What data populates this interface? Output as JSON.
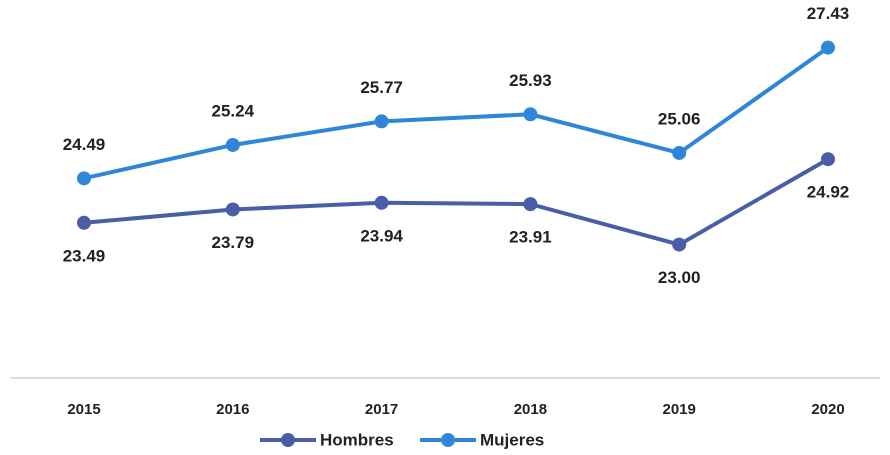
{
  "chart_data": {
    "type": "line",
    "categories": [
      "2015",
      "2016",
      "2017",
      "2018",
      "2019",
      "2020"
    ],
    "series": [
      {
        "name": "Hombres",
        "color": "#4a5ea8",
        "values": [
          23.49,
          23.79,
          23.94,
          23.91,
          23.0,
          24.92
        ],
        "value_labels": [
          "23.49",
          "23.79",
          "23.94",
          "23.91",
          "23.00",
          "24.92"
        ]
      },
      {
        "name": "Mujeres",
        "color": "#2f86d8",
        "values": [
          24.49,
          25.24,
          25.77,
          25.93,
          25.06,
          27.43
        ],
        "value_labels": [
          "24.49",
          "25.24",
          "25.77",
          "25.93",
          "25.06",
          "27.43"
        ]
      }
    ],
    "ylim": [
      20,
      28.5
    ],
    "legend": "bottom"
  }
}
